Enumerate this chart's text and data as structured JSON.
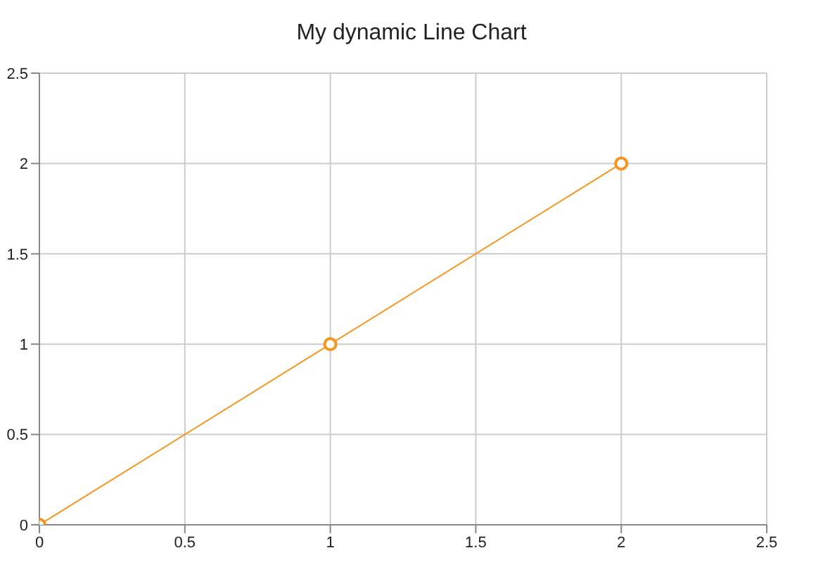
{
  "chart_data": {
    "type": "line",
    "title": "My dynamic Line Chart",
    "x": [
      0,
      1,
      2
    ],
    "series": [
      {
        "color": "#f7941d",
        "values": [
          0,
          1,
          2
        ]
      }
    ],
    "xlim": [
      0,
      2.5
    ],
    "xticks": [
      0,
      0.5,
      1,
      1.5,
      2,
      2.5
    ],
    "ylim": [
      0,
      2.5
    ],
    "yticks": [
      0,
      0.5,
      1,
      1.5,
      2,
      2.5
    ],
    "grid": true,
    "marker": "circle",
    "line_style": "solid"
  }
}
